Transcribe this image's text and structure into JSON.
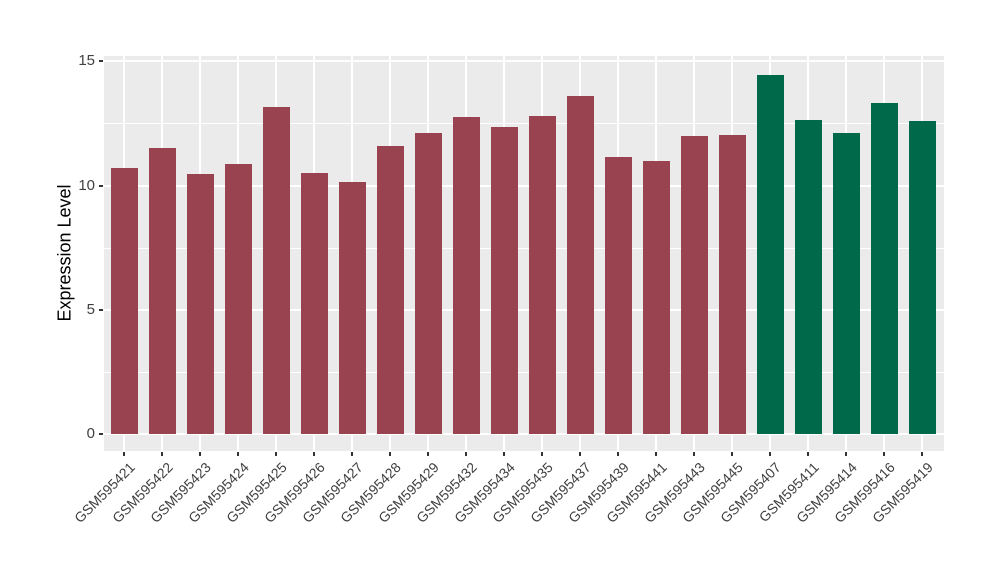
{
  "figure": {
    "background": "#FFFFFF",
    "panel_background": "#EBEBEB",
    "gridline_color": "#FFFFFF",
    "tick_color": "#333333",
    "axis_text_color": "#404040",
    "axis_title_color": "#000000"
  },
  "chart_data": {
    "type": "bar",
    "title": "",
    "xlabel": "",
    "ylabel": "Expression Level",
    "ylim": [
      0,
      15.2
    ],
    "yticks": [
      0,
      5,
      10,
      15
    ],
    "yticks_minor": [
      2.5,
      7.5,
      12.5
    ],
    "grid": "on",
    "legend": "none",
    "categories": [
      "GSM595421",
      "GSM595422",
      "GSM595423",
      "GSM595424",
      "GSM595425",
      "GSM595426",
      "GSM595427",
      "GSM595428",
      "GSM595429",
      "GSM595432",
      "GSM595434",
      "GSM595435",
      "GSM595437",
      "GSM595439",
      "GSM595441",
      "GSM595443",
      "GSM595445",
      "GSM595407",
      "GSM595411",
      "GSM595414",
      "GSM595416",
      "GSM595419"
    ],
    "values": [
      10.7,
      11.5,
      10.45,
      10.85,
      13.15,
      10.5,
      10.15,
      11.6,
      12.1,
      12.75,
      12.35,
      12.8,
      13.6,
      11.15,
      11.0,
      12.0,
      12.05,
      14.45,
      12.65,
      12.1,
      13.3,
      12.6
    ],
    "groups": [
      "maroon",
      "maroon",
      "maroon",
      "maroon",
      "maroon",
      "maroon",
      "maroon",
      "maroon",
      "maroon",
      "maroon",
      "maroon",
      "maroon",
      "maroon",
      "maroon",
      "maroon",
      "maroon",
      "maroon",
      "green",
      "green",
      "green",
      "green",
      "green"
    ],
    "group_colors": {
      "maroon": "#9A4350",
      "green": "#00694A"
    }
  }
}
